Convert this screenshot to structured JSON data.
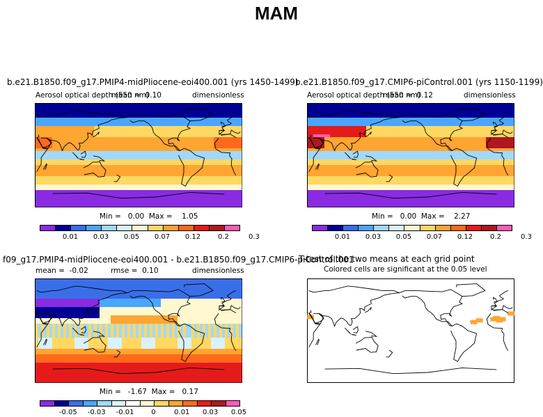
{
  "figure": {
    "title": "MAM"
  },
  "palettes": {
    "main": [
      "#8a2be2",
      "#000095",
      "#3a6ee8",
      "#4aa6ff",
      "#a0d8ff",
      "#d9f2ff",
      "#fff7cf",
      "#ffd862",
      "#ffa531",
      "#ff6a1a",
      "#e51b1b",
      "#b0171f",
      "#ff5ab8"
    ],
    "diff": [
      "#8a2be2",
      "#000095",
      "#3a6ee8",
      "#4aa6ff",
      "#a0d8ff",
      "#d9f2ff",
      "#ffffff",
      "#fff7cf",
      "#ffd862",
      "#ffa531",
      "#ff6a1a",
      "#e51b1b",
      "#b0171f",
      "#ff5ab8"
    ]
  },
  "chart_data": [
    {
      "type": "heatmap",
      "title": "b.e21.B1850.f09_g17.PMIP4-midPliocene-eoi400.001 (yrs 1450-1499)",
      "variable": "Aerosol optical depth (550 nm)",
      "mean_label": "mean =",
      "mean": "0.10",
      "units": "dimensionless",
      "min_label": "Min =",
      "min": "0.00",
      "max_label": "Max =",
      "max": "1.05",
      "colorbar_ticks": [
        "0.01",
        "0.03",
        "0.05",
        "0.07",
        "0.12",
        "0.2",
        "0.3"
      ]
    },
    {
      "type": "heatmap",
      "title": "b.e21.B1850.f09_g17.CMIP6-piControl.001 (yrs 1150-1199)",
      "variable": "Aerosol optical depth (550 nm)",
      "mean_label": "mean =",
      "mean": "0.12",
      "units": "dimensionless",
      "min_label": "Min =",
      "min": "0.00",
      "max_label": "Max =",
      "max": "2.27",
      "colorbar_ticks": [
        "0.01",
        "0.03",
        "0.05",
        "0.07",
        "0.12",
        "0.2",
        "0.3"
      ]
    },
    {
      "type": "heatmap",
      "title": "f09_g17.PMIP4-midPliocene-eoi400.001 - b.e21.B1850.f09_g17.CMIP6-piControl.001",
      "mean_label": "mean =",
      "mean": "-0.02",
      "rmse_label": "rmse =",
      "rmse": "0.10",
      "units": "dimensionless",
      "min_label": "Min =",
      "min": "-1.67",
      "max_label": "Max =",
      "max": "0.17",
      "colorbar_ticks": [
        "-0.05",
        "-0.03",
        "-0.01",
        "0",
        "0.01",
        "0.03",
        "0.05"
      ]
    },
    {
      "type": "heatmap",
      "title": "T-test of the two means at each grid point",
      "subtitle": "Colored cells are significant at the 0.05 level"
    }
  ]
}
